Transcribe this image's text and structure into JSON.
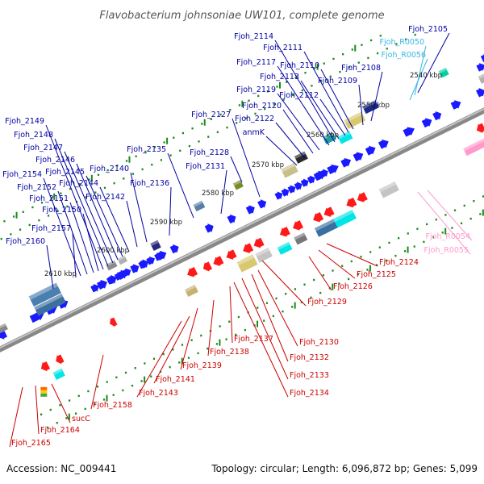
{
  "title": "Flavobacterium johnsoniae UW101, complete genome",
  "footer": {
    "accession": "Accession: NC_009441",
    "info": "Topology: circular; Length: 6,096,872 bp; Genes: 5,099"
  },
  "colors": {
    "forward_gene": "#1a1aff",
    "reverse_gene": "#ff1a1a",
    "forward_label": "#0000a0",
    "reverse_label": "#cc0000",
    "rna_cyan": "#38b6e0",
    "rna_pink": "#ff99cc",
    "backbone": "#888888",
    "tick": "#1a8a1a"
  },
  "ticks": [
    "2540 kbp",
    "2550 kbp",
    "2560 kbp",
    "2570 kbp",
    "2580 kbp",
    "2590 kbp",
    "2600 kbp",
    "2610 kbp"
  ],
  "upper_labels": [
    "Fjoh_2105",
    "Fjoh_R0050",
    "Fjoh_R0056",
    "Fjoh_2108",
    "Fjoh_2109",
    "Fjoh_2110",
    "Fjoh_2111",
    "Fjoh_2112",
    "Fjoh_2113",
    "Fjoh_2114",
    "Fjoh_2117",
    "Fjoh_2119",
    "Fjoh_2120",
    "Fjoh_2122",
    "anmK",
    "Fjoh_2127",
    "Fjoh_2128",
    "Fjoh_2131",
    "Fjoh_2135",
    "Fjoh_2136",
    "Fjoh_2140",
    "Fjoh_2142",
    "Fjoh_2144",
    "Fjoh_2145",
    "Fjoh_2146",
    "Fjoh_2147",
    "Fjoh_2148",
    "Fjoh_2149",
    "Fjoh_2150",
    "Fjoh_2151",
    "Fjoh_2152",
    "Fjoh_2154",
    "Fjoh_2157",
    "Fjoh_2160"
  ],
  "lower_labels": [
    "Fjoh_R0054",
    "Fjoh_R0055",
    "Fjoh_2124",
    "Fjoh_2125",
    "Fjoh_2126",
    "Fjoh_2129",
    "Fjoh_2130",
    "Fjoh_2132",
    "Fjoh_2133",
    "Fjoh_2134",
    "Fjoh_2137",
    "Fjoh_2138",
    "Fjoh_2139",
    "Fjoh_2141",
    "Fjoh_2143",
    "Fjoh_2158",
    "sucC",
    "Fjoh_2164",
    "Fjoh_2165"
  ]
}
